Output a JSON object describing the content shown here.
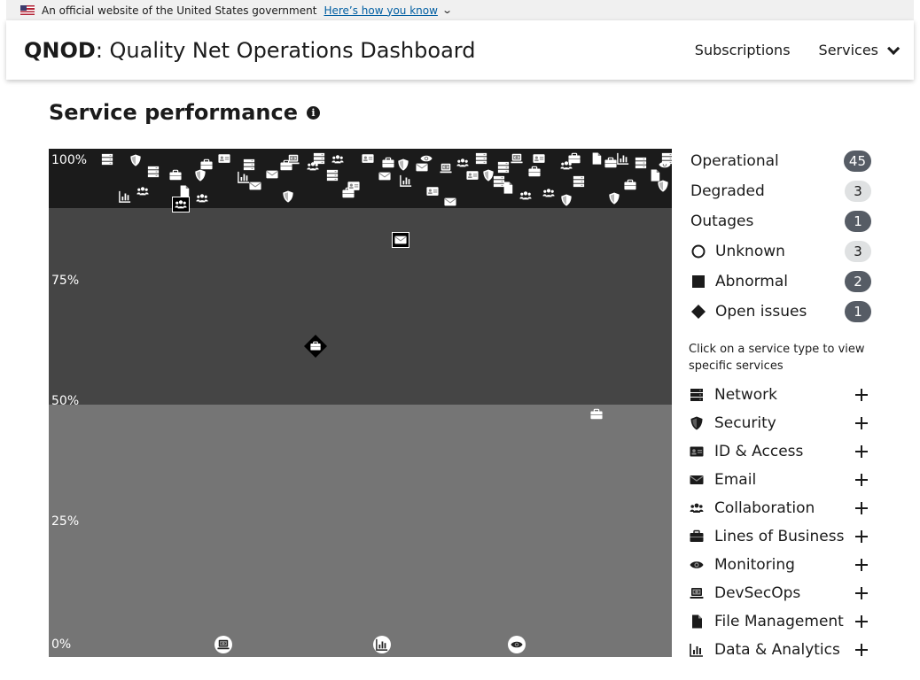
{
  "banner": {
    "text": "An official website of the United States government",
    "link": "Here’s how you know"
  },
  "header": {
    "brand_short": "QNOD",
    "brand_rest": ": Quality Net Operations Dashboard",
    "nav": [
      "Subscriptions",
      "Services"
    ]
  },
  "page": {
    "title": "Service performance"
  },
  "chart": {
    "y_labels": [
      "100%",
      "75%",
      "50%",
      "25%",
      "0%"
    ]
  },
  "legend": {
    "items": [
      {
        "label": "Operational",
        "count": "45",
        "mark": "none"
      },
      {
        "label": "Degraded",
        "count": "3",
        "mark": "none"
      },
      {
        "label": "Outages",
        "count": "1",
        "mark": "none"
      },
      {
        "label": "Unknown",
        "count": "3",
        "mark": "circle"
      },
      {
        "label": "Abnormal",
        "count": "2",
        "mark": "square"
      },
      {
        "label": "Open issues",
        "count": "1",
        "mark": "diamond"
      }
    ]
  },
  "hint": "Click on a service type to view specific services",
  "service_types": [
    {
      "label": "Network",
      "icon": "server-icon"
    },
    {
      "label": "Security",
      "icon": "shield-icon"
    },
    {
      "label": "ID & Access",
      "icon": "id-card-icon"
    },
    {
      "label": "Email",
      "icon": "envelope-icon"
    },
    {
      "label": "Collaboration",
      "icon": "users-icon"
    },
    {
      "label": "Lines of Business",
      "icon": "briefcase-icon"
    },
    {
      "label": "Monitoring",
      "icon": "eye-icon"
    },
    {
      "label": "DevSecOps",
      "icon": "laptop-code-icon"
    },
    {
      "label": "File Management",
      "icon": "file-icon"
    },
    {
      "label": "Data & Analytics",
      "icon": "chart-icon"
    }
  ],
  "colors": {
    "operational_band": "#1b1b1b",
    "degraded_band": "#454545",
    "outage_band": "#757575",
    "badge_dark": "#565c65",
    "badge_light": "#dfe1e2",
    "link": "#005ea2"
  }
}
